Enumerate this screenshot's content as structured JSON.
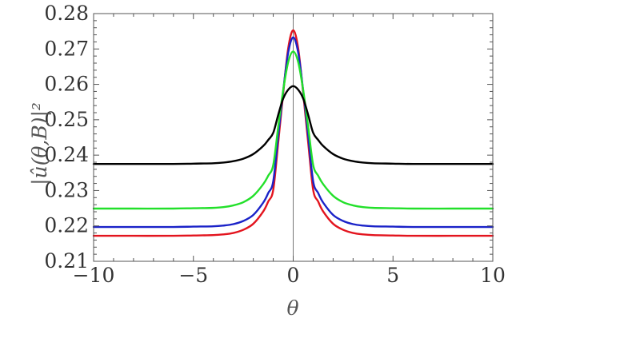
{
  "chart_data": {
    "type": "line",
    "title": "",
    "xlabel": "θ",
    "ylabel": "|û(θ,B)|²",
    "xlim": [
      -10,
      10
    ],
    "ylim": [
      0.21,
      0.28
    ],
    "x_ticks": [
      -10,
      -5,
      0,
      5,
      10
    ],
    "x_tick_labels": [
      "−10",
      "−5",
      "0",
      "5",
      "10"
    ],
    "y_ticks": [
      0.21,
      0.22,
      0.23,
      0.24,
      0.25,
      0.26,
      0.27,
      0.28
    ],
    "y_tick_labels": [
      "0.21",
      "0.22",
      "0.23",
      "0.24",
      "0.25",
      "0.26",
      "0.27",
      "0.28"
    ],
    "grid": false,
    "x": [
      -10,
      -8,
      -6,
      -5,
      -4,
      -3.5,
      -3,
      -2.5,
      -2,
      -1.5,
      -1.25,
      -1,
      -0.75,
      -0.5,
      -0.25,
      0,
      0.25,
      0.5,
      0.75,
      1,
      1.25,
      1.5,
      2,
      2.5,
      3,
      3.5,
      4,
      5,
      6,
      8,
      10
    ],
    "series": [
      {
        "color": "#e3141e",
        "values": [
          0.2172,
          0.2172,
          0.2172,
          0.2173,
          0.2174,
          0.2176,
          0.218,
          0.2189,
          0.2206,
          0.2241,
          0.2269,
          0.2302,
          0.2436,
          0.2575,
          0.2702,
          0.2753,
          0.2702,
          0.2575,
          0.2436,
          0.2302,
          0.2269,
          0.2241,
          0.2206,
          0.2189,
          0.218,
          0.2176,
          0.2174,
          0.2173,
          0.2172,
          0.2172,
          0.2172
        ]
      },
      {
        "color": "#1a22c8",
        "values": [
          0.2197,
          0.2197,
          0.2197,
          0.2198,
          0.2199,
          0.2201,
          0.2205,
          0.2214,
          0.2231,
          0.2266,
          0.2293,
          0.2326,
          0.2455,
          0.2582,
          0.269,
          0.2733,
          0.269,
          0.2582,
          0.2455,
          0.2326,
          0.2293,
          0.2266,
          0.2231,
          0.2214,
          0.2205,
          0.2201,
          0.2199,
          0.2198,
          0.2197,
          0.2197,
          0.2197
        ]
      },
      {
        "color": "#22e02a",
        "values": [
          0.2249,
          0.2249,
          0.2249,
          0.225,
          0.2251,
          0.2253,
          0.2258,
          0.2267,
          0.2285,
          0.2318,
          0.2342,
          0.2372,
          0.248,
          0.2584,
          0.2663,
          0.2693,
          0.2663,
          0.2584,
          0.248,
          0.2372,
          0.2342,
          0.2318,
          0.2285,
          0.2267,
          0.2258,
          0.2253,
          0.2251,
          0.225,
          0.2249,
          0.2249,
          0.2249
        ]
      },
      {
        "color": "#000000",
        "values": [
          0.2375,
          0.2375,
          0.2375,
          0.2376,
          0.2377,
          0.2379,
          0.2383,
          0.239,
          0.2403,
          0.2426,
          0.2443,
          0.2463,
          0.2514,
          0.256,
          0.2585,
          0.2595,
          0.2585,
          0.256,
          0.2514,
          0.2463,
          0.2443,
          0.2426,
          0.2403,
          0.239,
          0.2383,
          0.2379,
          0.2377,
          0.2376,
          0.2375,
          0.2375,
          0.2375
        ]
      }
    ]
  }
}
